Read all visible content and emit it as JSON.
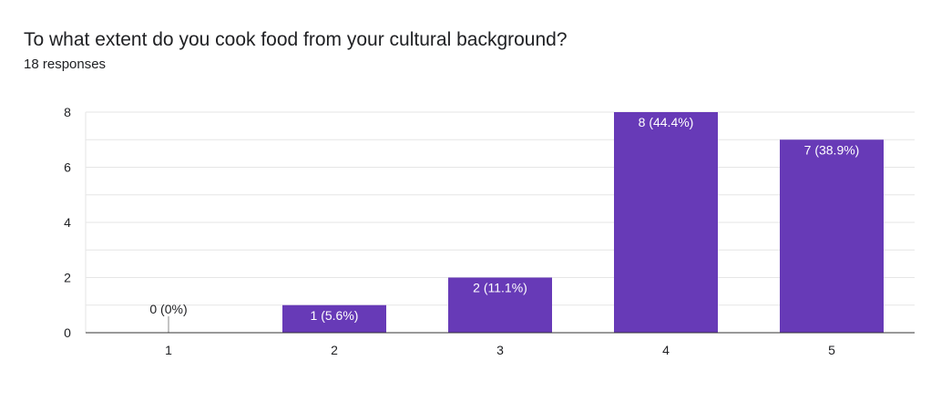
{
  "question": {
    "title": "To what extent do you cook food from your cultural background?",
    "responses": "18 responses"
  },
  "colors": {
    "bar": "#673ab7",
    "gridline": "#e6e6e6",
    "axis": "#333333",
    "label_inside": "#ffffff",
    "label_outside": "#202124"
  },
  "chart_data": {
    "type": "bar",
    "categories": [
      "1",
      "2",
      "3",
      "4",
      "5"
    ],
    "values": [
      0,
      1,
      2,
      8,
      7
    ],
    "data_labels": [
      "0 (0%)",
      "1 (5.6%)",
      "2 (11.1%)",
      "8 (44.4%)",
      "7 (38.9%)"
    ],
    "xlabel": "",
    "ylabel": "",
    "ylim": [
      0,
      8
    ],
    "yticks": [
      0,
      2,
      4,
      6,
      8
    ],
    "grid": true,
    "legend": "none"
  }
}
